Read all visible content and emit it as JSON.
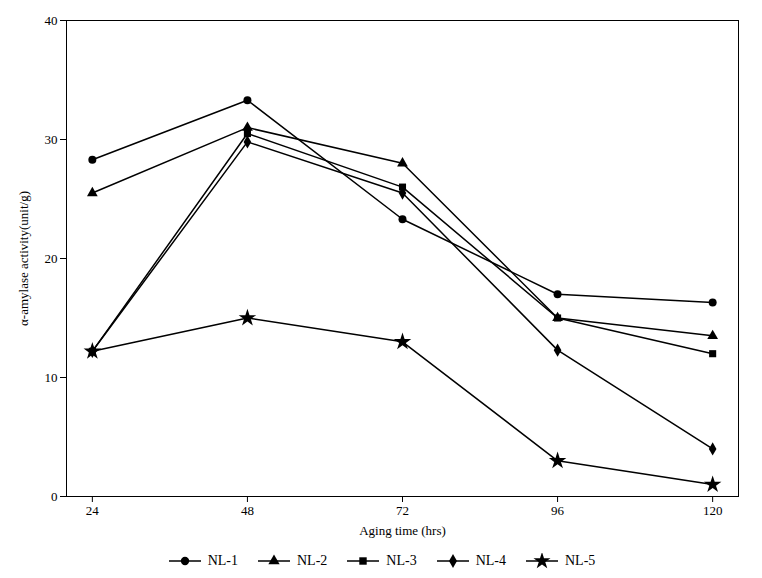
{
  "chart_data": {
    "type": "line",
    "xlabel": "Aging time (hrs)",
    "ylabel": "α-amylase activity(unit/g)",
    "x": [
      24,
      48,
      72,
      96,
      120
    ],
    "series": [
      {
        "name": "NL-1",
        "color": "#000000",
        "marker": "circle",
        "values": [
          28.3,
          33.3,
          23.3,
          17.0,
          16.3
        ]
      },
      {
        "name": "NL-2",
        "color": "#000000",
        "marker": "triangle",
        "values": [
          25.5,
          31.0,
          28.0,
          15.0,
          13.5
        ]
      },
      {
        "name": "NL-3",
        "color": "#000000",
        "marker": "square",
        "values": [
          12.2,
          30.5,
          26.0,
          15.0,
          12.0
        ]
      },
      {
        "name": "NL-4",
        "color": "#000000",
        "marker": "diamond",
        "values": [
          12.2,
          29.8,
          25.5,
          12.3,
          4.0
        ]
      },
      {
        "name": "NL-5",
        "color": "#000000",
        "marker": "star",
        "values": [
          12.2,
          15.0,
          13.0,
          3.0,
          1.0
        ]
      }
    ],
    "xlim": [
      20,
      124
    ],
    "xticks": [
      24,
      48,
      72,
      96,
      120
    ],
    "ylim": [
      0,
      40
    ],
    "yticks": [
      0,
      10,
      20,
      30,
      40
    ],
    "legend": "bottom",
    "grid": false
  }
}
